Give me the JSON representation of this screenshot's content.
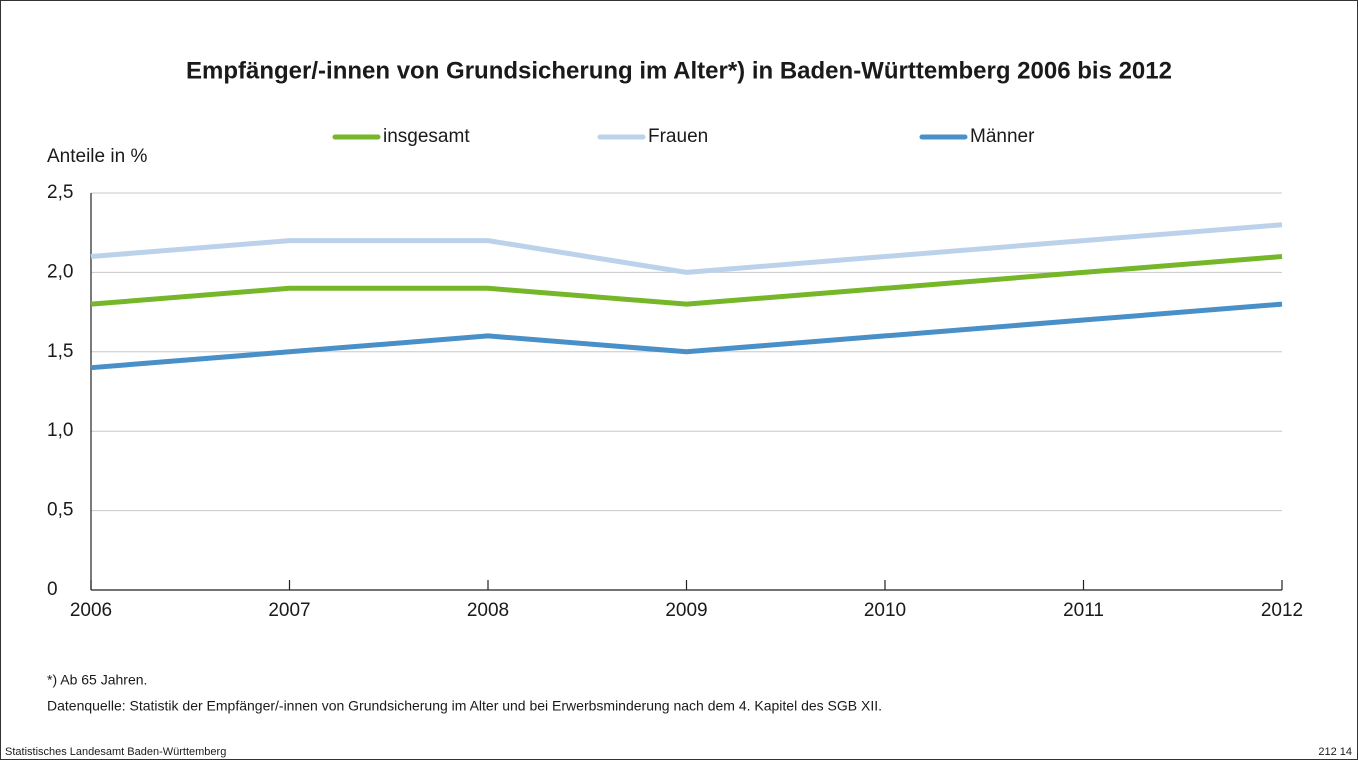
{
  "chart_data": {
    "type": "line",
    "title": "Empfänger/-innen von Grundsicherung im Alter*) in Baden-Württemberg 2006 bis 2012",
    "y_label": "Anteile in %",
    "x": [
      2006,
      2007,
      2008,
      2009,
      2010,
      2011,
      2012
    ],
    "xlim": [
      2006,
      2012
    ],
    "xticks": [
      2006,
      2007,
      2008,
      2009,
      2010,
      2011,
      2012
    ],
    "series": [
      {
        "name": "insgesamt",
        "color": "#76b72a",
        "values": [
          1.8,
          1.9,
          1.9,
          1.8,
          1.9,
          2.0,
          2.1
        ]
      },
      {
        "name": "Frauen",
        "color": "#bcd2ea",
        "values": [
          2.1,
          2.2,
          2.2,
          2.0,
          2.1,
          2.2,
          2.3
        ]
      },
      {
        "name": "Männer",
        "color": "#4a90c8",
        "values": [
          1.4,
          1.5,
          1.6,
          1.5,
          1.6,
          1.7,
          1.8
        ]
      }
    ],
    "ylim": [
      0,
      2.5
    ],
    "yticks": [
      0,
      {
        "value": 0.5,
        "label": "0,5"
      },
      {
        "value": 1,
        "label": "1,0"
      },
      {
        "value": 1.5,
        "label": "1,5"
      },
      {
        "value": 2,
        "label": "2,0"
      },
      {
        "value": 2.5,
        "label": "2,5"
      }
    ],
    "grid": true,
    "footnote": "*) Ab 65 Jahren.",
    "source": "Datenquelle: Statistik der Empfänger/-innen von Grundsicherung im Alter und bei Erwerbsminderung nach dem 4. Kapitel des SGB XII.",
    "publisher": "Statistisches Landesamt Baden-Württemberg",
    "code": "212 14"
  }
}
